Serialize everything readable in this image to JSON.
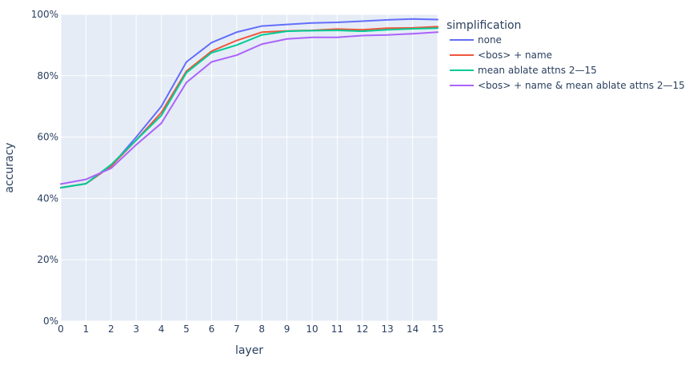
{
  "chart_data": {
    "type": "line",
    "xlabel": "layer",
    "ylabel": "accuracy",
    "xlim": [
      0,
      15
    ],
    "ylim": [
      0,
      1
    ],
    "x_ticks": [
      0,
      1,
      2,
      3,
      4,
      5,
      6,
      7,
      8,
      9,
      10,
      11,
      12,
      13,
      14,
      15
    ],
    "y_ticks": [
      0,
      0.2,
      0.4,
      0.6,
      0.8,
      1.0
    ],
    "y_tick_labels": [
      "0%",
      "20%",
      "40%",
      "60%",
      "80%",
      "100%"
    ],
    "grid": true,
    "legend": {
      "title": "simplification",
      "placement": "right"
    },
    "x": [
      0,
      1,
      2,
      3,
      4,
      5,
      6,
      7,
      8,
      9,
      10,
      11,
      12,
      13,
      14,
      15
    ],
    "series": [
      {
        "name": "none",
        "color": "#636efa",
        "values": [
          0.435,
          0.448,
          0.505,
          0.6,
          0.7,
          0.845,
          0.908,
          0.942,
          0.962,
          0.967,
          0.972,
          0.974,
          0.978,
          0.982,
          0.985,
          0.983
        ]
      },
      {
        "name": "<bos> + name",
        "color": "#ef553b",
        "values": [
          0.435,
          0.448,
          0.505,
          0.59,
          0.68,
          0.815,
          0.88,
          0.915,
          0.942,
          0.946,
          0.948,
          0.952,
          0.95,
          0.955,
          0.956,
          0.96
        ]
      },
      {
        "name": "mean ablate attns 2—15",
        "color": "#00cc96",
        "values": [
          0.435,
          0.448,
          0.51,
          0.59,
          0.67,
          0.81,
          0.875,
          0.9,
          0.933,
          0.945,
          0.947,
          0.948,
          0.945,
          0.95,
          0.953,
          0.955
        ]
      },
      {
        "name": "<bos> + name & mean ablate attns 2—15",
        "color": "#ab63fa",
        "values": [
          0.447,
          0.462,
          0.498,
          0.575,
          0.645,
          0.778,
          0.845,
          0.867,
          0.903,
          0.92,
          0.925,
          0.925,
          0.931,
          0.933,
          0.937,
          0.942
        ]
      }
    ]
  }
}
